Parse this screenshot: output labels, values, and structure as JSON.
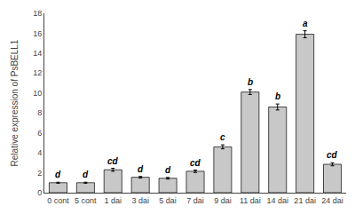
{
  "chart_data": {
    "type": "bar",
    "categories": [
      "0 cont",
      "5 cont",
      "1 dai",
      "3 dai",
      "5 dai",
      "7 dai",
      "9 dai",
      "11 dai",
      "14 dai",
      "21 dai",
      "24 dai"
    ],
    "values": [
      1.0,
      1.0,
      2.3,
      1.55,
      1.45,
      2.15,
      4.6,
      10.1,
      8.6,
      15.9,
      2.85
    ],
    "errors": [
      0.05,
      0.05,
      0.15,
      0.08,
      0.08,
      0.12,
      0.2,
      0.25,
      0.3,
      0.35,
      0.15
    ],
    "annotations": [
      "d",
      "d",
      "cd",
      "d",
      "d",
      "cd",
      "c",
      "b",
      "b",
      "a",
      "cd"
    ],
    "color": "#c8c8c8",
    "ylabel": "Relative expression of PsBELL1",
    "ylim": [
      0,
      18
    ],
    "yticks": [
      0,
      2,
      4,
      6,
      8,
      10,
      12,
      14,
      16,
      18
    ],
    "grid": false
  }
}
